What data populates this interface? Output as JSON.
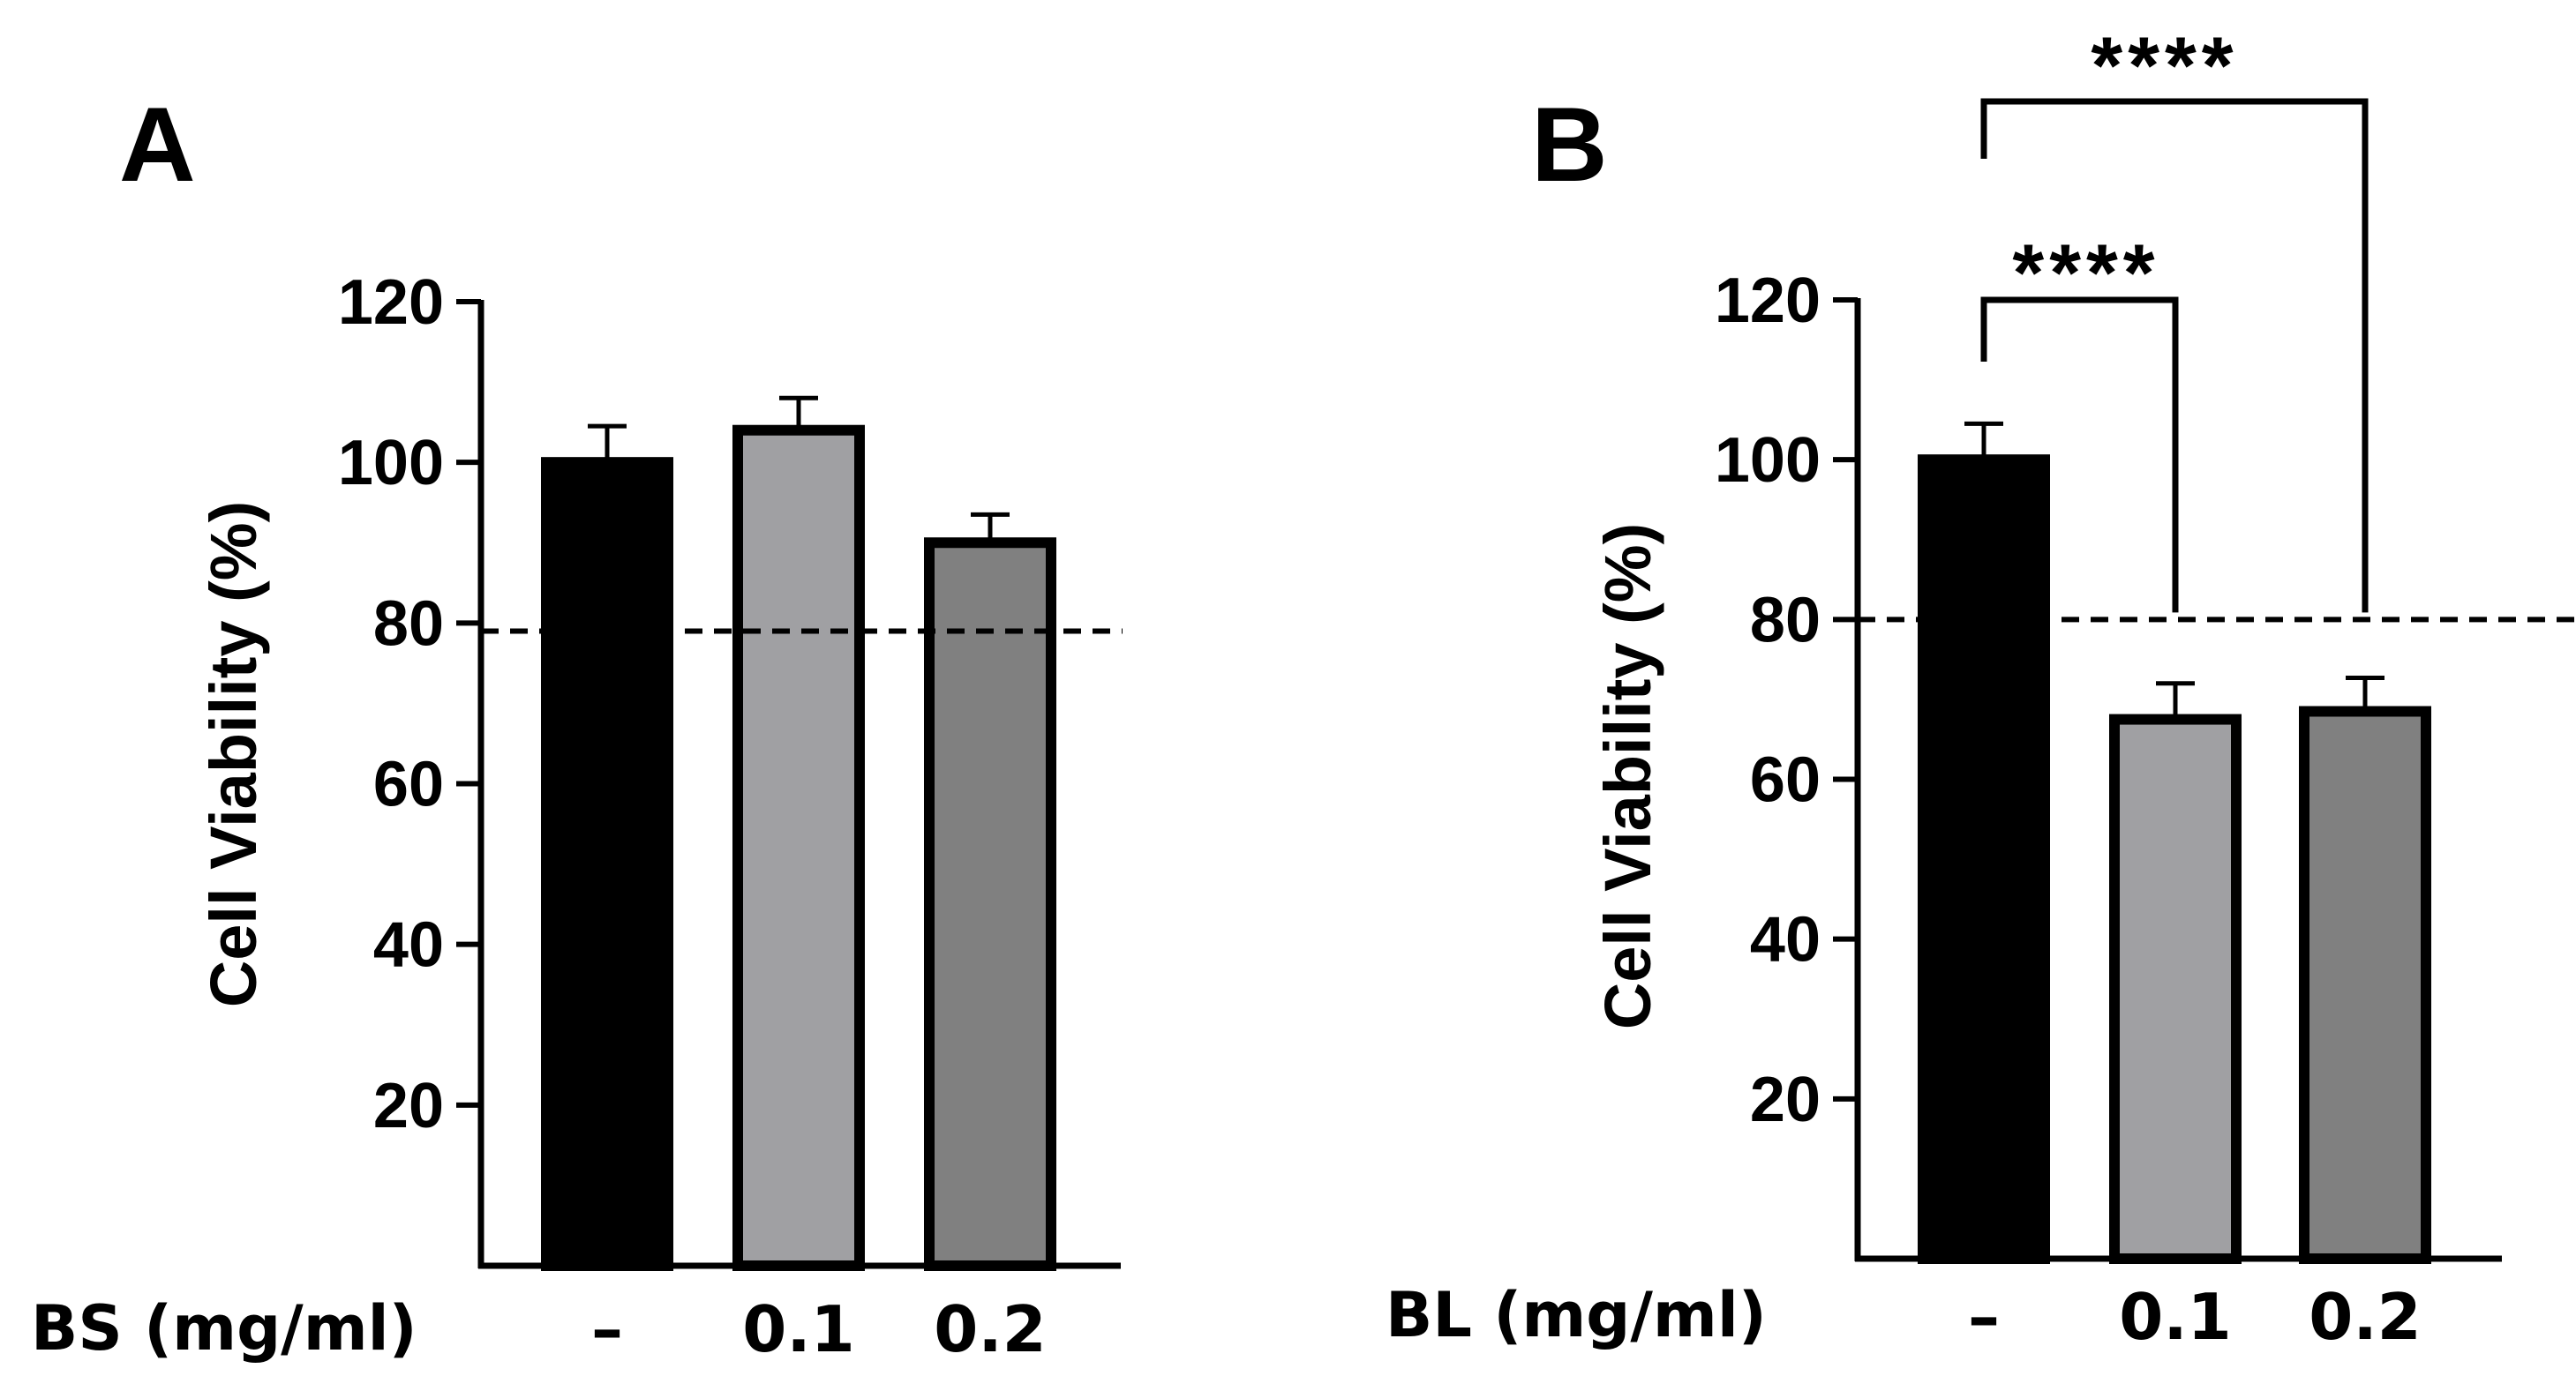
{
  "chart_data": [
    {
      "type": "bar",
      "panel_label": "A",
      "ylabel": "Cell Viability (%)",
      "xlabel": "BS (mg/ml)",
      "categories": [
        "–",
        "0.1",
        "0.2"
      ],
      "values": [
        100,
        104,
        90
      ],
      "errors": [
        4.5,
        4,
        3.5
      ],
      "bar_colors": [
        "#000000",
        "#a0a0a3",
        "#808080"
      ],
      "ylim": [
        0,
        120
      ],
      "yticks": [
        20,
        40,
        60,
        80,
        100,
        120
      ],
      "reference_line": 79,
      "significance": []
    },
    {
      "type": "bar",
      "panel_label": "B",
      "ylabel": "Cell Viability (%)",
      "xlabel": "BL (mg/ml)",
      "categories": [
        "–",
        "0.1",
        "0.2"
      ],
      "values": [
        100,
        67.5,
        68.5
      ],
      "errors": [
        4.5,
        4.5,
        4.2
      ],
      "bar_colors": [
        "#000000",
        "#a0a0a3",
        "#808080"
      ],
      "ylim": [
        0,
        120
      ],
      "yticks": [
        20,
        40,
        60,
        80,
        100,
        120
      ],
      "reference_line": 80,
      "significance": [
        {
          "from": 0,
          "to": 1,
          "label": "****",
          "level": 1
        },
        {
          "from": 0,
          "to": 2,
          "label": "****",
          "level": 2
        }
      ]
    }
  ]
}
